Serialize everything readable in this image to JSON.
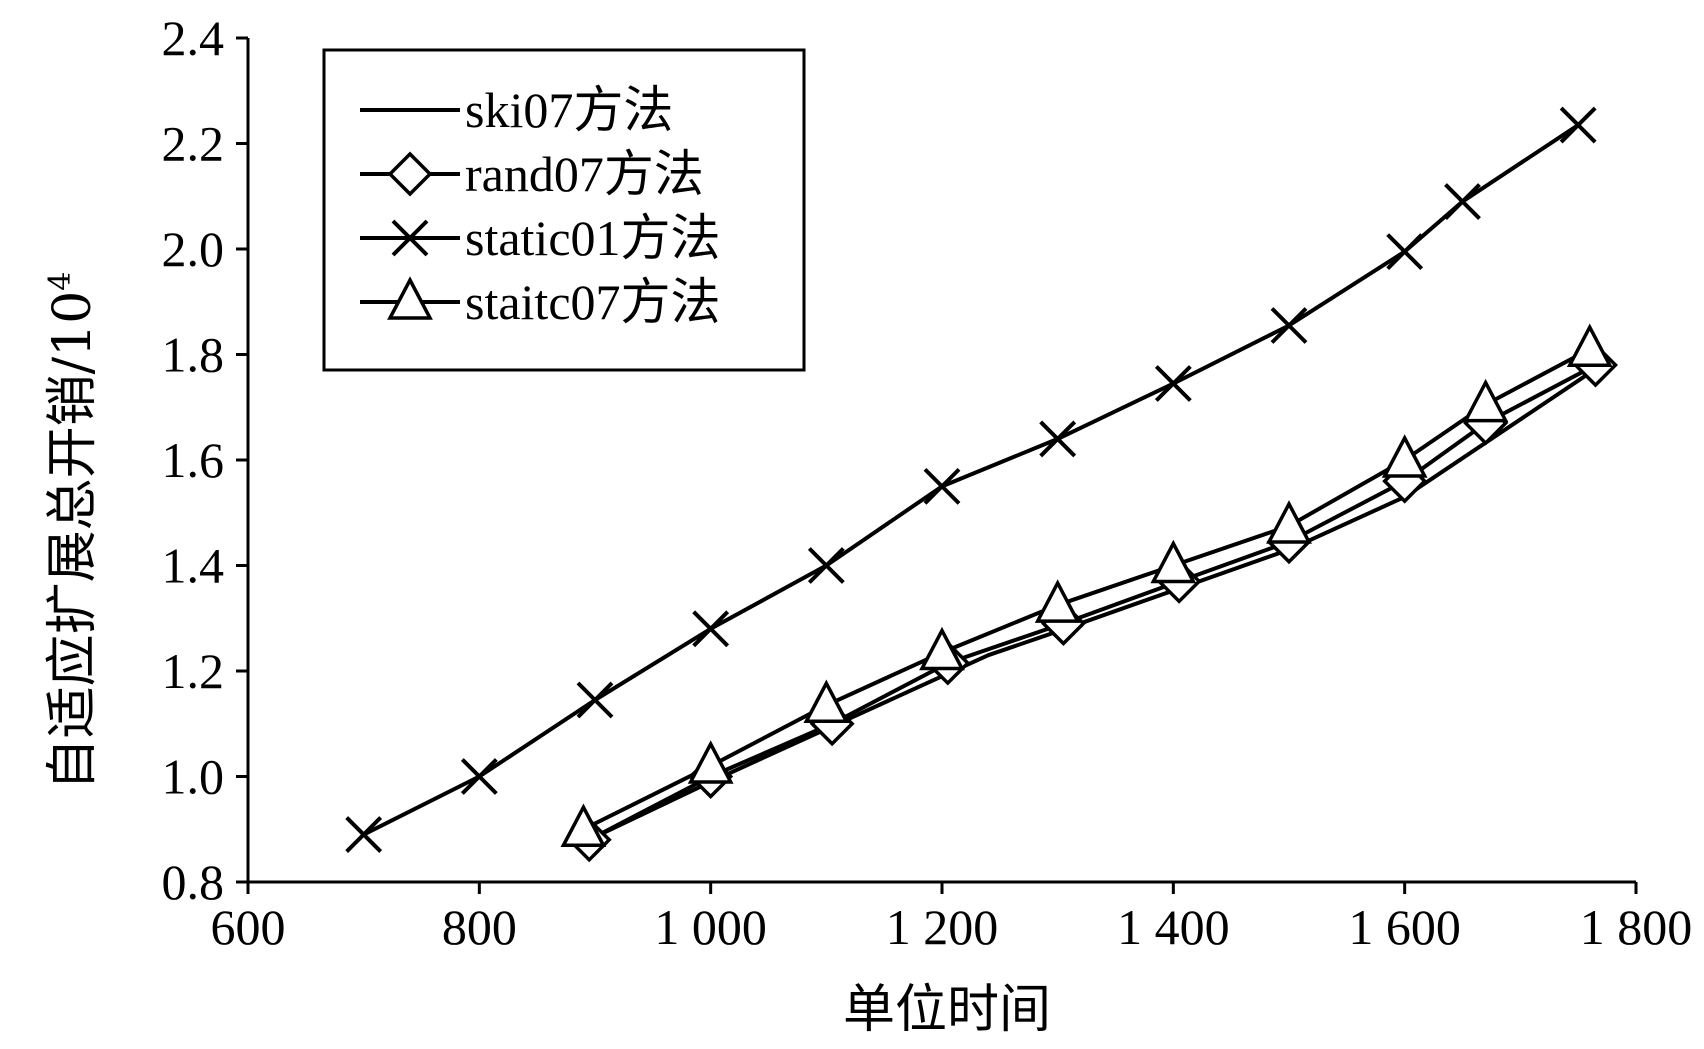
{
  "chart_data": {
    "type": "line",
    "title": "",
    "xlabel": "单位时间",
    "ylabel": "自适应扩展总开销/10",
    "ylabel_superscript": "4",
    "xlim": [
      600,
      1800
    ],
    "ylim": [
      0.8,
      2.4
    ],
    "xticks": [
      600,
      800,
      1000,
      1200,
      1400,
      1600,
      1800
    ],
    "xtick_labels": [
      "600",
      "800",
      "1 000",
      "1 200",
      "1 400",
      "1 600",
      "1 800"
    ],
    "yticks": [
      0.8,
      1.0,
      1.2,
      1.4,
      1.6,
      1.8,
      2.0,
      2.2,
      2.4
    ],
    "ytick_labels": [
      "0.8",
      "1.0",
      "1.2",
      "1.4",
      "1.6",
      "1.8",
      "2.0",
      "2.2",
      "2.4"
    ],
    "grid": false,
    "legend_position": "top-left",
    "line_color": "#000000",
    "series": [
      {
        "name": "ski07方法",
        "marker": "none",
        "points": [
          [
            890,
            0.875
          ],
          [
            1000,
            0.99
          ],
          [
            1100,
            1.09
          ],
          [
            1240,
            1.23
          ],
          [
            1300,
            1.275
          ],
          [
            1500,
            1.43
          ],
          [
            1600,
            1.53
          ],
          [
            1760,
            1.765
          ]
        ]
      },
      {
        "name": "rand07方法",
        "marker": "diamond",
        "points": [
          [
            895,
            0.88
          ],
          [
            1000,
            1.0
          ],
          [
            1105,
            1.1
          ],
          [
            1205,
            1.215
          ],
          [
            1305,
            1.29
          ],
          [
            1405,
            1.37
          ],
          [
            1500,
            1.445
          ],
          [
            1600,
            1.56
          ],
          [
            1670,
            1.67
          ],
          [
            1765,
            1.78
          ]
        ]
      },
      {
        "name": "static01方法",
        "marker": "x",
        "points": [
          [
            700,
            0.89
          ],
          [
            800,
            1.0
          ],
          [
            900,
            1.145
          ],
          [
            1000,
            1.28
          ],
          [
            1100,
            1.4
          ],
          [
            1200,
            1.55
          ],
          [
            1300,
            1.64
          ],
          [
            1400,
            1.745
          ],
          [
            1500,
            1.855
          ],
          [
            1600,
            1.995
          ],
          [
            1650,
            2.09
          ],
          [
            1750,
            2.235
          ]
        ]
      },
      {
        "name": "staitc07方法",
        "marker": "triangle",
        "points": [
          [
            890,
            0.9
          ],
          [
            1000,
            1.02
          ],
          [
            1100,
            1.135
          ],
          [
            1200,
            1.235
          ],
          [
            1300,
            1.325
          ],
          [
            1400,
            1.4
          ],
          [
            1500,
            1.475
          ],
          [
            1600,
            1.6
          ],
          [
            1670,
            1.705
          ],
          [
            1760,
            1.81
          ]
        ]
      }
    ]
  }
}
